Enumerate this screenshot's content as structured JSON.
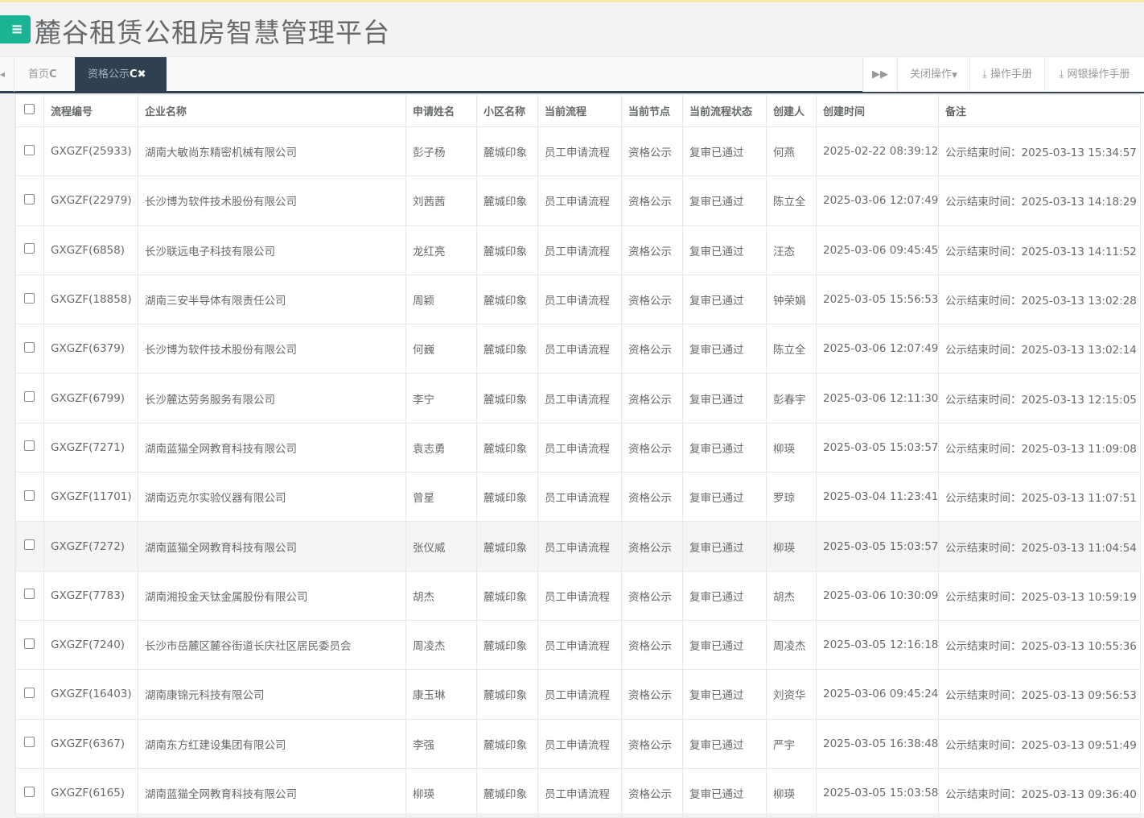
{
  "app": {
    "title": "麓谷租赁公租房智慧管理平台",
    "menu_icon": "hamburger-icon"
  },
  "tabs": [
    {
      "label": "首页",
      "active": false
    },
    {
      "label": "资格公示",
      "active": true
    }
  ],
  "toolbar": {
    "forward_icon": "double-chevron-right-icon",
    "close_ops": "关闭操作",
    "manual": "操作手册",
    "bank_manual": "网银操作手册"
  },
  "colors": {
    "accent": "#1ab394",
    "nav_dark": "#2f4050"
  },
  "table": {
    "columns": [
      "流程编号",
      "企业名称",
      "申请姓名",
      "小区名称",
      "当前流程",
      "当前节点",
      "当前流程状态",
      "创建人",
      "创建时间",
      "备注"
    ],
    "rows": [
      [
        "GXGZF(25933)",
        "湖南大敏尚东精密机械有限公司",
        "彭子杨",
        "麓城印象",
        "员工申请流程",
        "资格公示",
        "复审已通过",
        "何燕",
        "2025-02-22 08:39:12",
        "公示结束时间：2025-03-13 15:34:57"
      ],
      [
        "GXGZF(22979)",
        "长沙博为软件技术股份有限公司",
        "刘茜茜",
        "麓城印象",
        "员工申请流程",
        "资格公示",
        "复审已通过",
        "陈立全",
        "2025-03-06 12:07:49",
        "公示结束时间：2025-03-13 14:18:29"
      ],
      [
        "GXGZF(6858)",
        "长沙联远电子科技有限公司",
        "龙红亮",
        "麓城印象",
        "员工申请流程",
        "资格公示",
        "复审已通过",
        "汪态",
        "2025-03-06 09:45:45",
        "公示结束时间：2025-03-13 14:11:52"
      ],
      [
        "GXGZF(18858)",
        "湖南三安半导体有限责任公司",
        "周颖",
        "麓城印象",
        "员工申请流程",
        "资格公示",
        "复审已通过",
        "钟荣娟",
        "2025-03-05 15:56:53",
        "公示结束时间：2025-03-13 13:02:28"
      ],
      [
        "GXGZF(6379)",
        "长沙博为软件技术股份有限公司",
        "何巍",
        "麓城印象",
        "员工申请流程",
        "资格公示",
        "复审已通过",
        "陈立全",
        "2025-03-06 12:07:49",
        "公示结束时间：2025-03-13 13:02:14"
      ],
      [
        "GXGZF(6799)",
        "长沙麓达劳务服务有限公司",
        "李宁",
        "麓城印象",
        "员工申请流程",
        "资格公示",
        "复审已通过",
        "彭春宇",
        "2025-03-06 12:11:30",
        "公示结束时间：2025-03-13 12:15:05"
      ],
      [
        "GXGZF(7271)",
        "湖南蓝猫全网教育科技有限公司",
        "袁志勇",
        "麓城印象",
        "员工申请流程",
        "资格公示",
        "复审已通过",
        "柳瑛",
        "2025-03-05 15:03:57",
        "公示结束时间：2025-03-13 11:09:08"
      ],
      [
        "GXGZF(11701)",
        "湖南迈克尔实验仪器有限公司",
        "曾星",
        "麓城印象",
        "员工申请流程",
        "资格公示",
        "复审已通过",
        "罗琼",
        "2025-03-04 11:23:41",
        "公示结束时间：2025-03-13 11:07:51"
      ],
      [
        "GXGZF(7272)",
        "湖南蓝猫全网教育科技有限公司",
        "张仪威",
        "麓城印象",
        "员工申请流程",
        "资格公示",
        "复审已通过",
        "柳瑛",
        "2025-03-05 15:03:57",
        "公示结束时间：2025-03-13 11:04:54"
      ],
      [
        "GXGZF(7783)",
        "湖南湘投金天钛金属股份有限公司",
        "胡杰",
        "麓城印象",
        "员工申请流程",
        "资格公示",
        "复审已通过",
        "胡杰",
        "2025-03-06 10:30:09",
        "公示结束时间：2025-03-13 10:59:19"
      ],
      [
        "GXGZF(7240)",
        "长沙市岳麓区麓谷街道长庆社区居民委员会",
        "周凌杰",
        "麓城印象",
        "员工申请流程",
        "资格公示",
        "复审已通过",
        "周凌杰",
        "2025-03-05 12:16:18",
        "公示结束时间：2025-03-13 10:55:36"
      ],
      [
        "GXGZF(16403)",
        "湖南康锦元科技有限公司",
        "康玉琳",
        "麓城印象",
        "员工申请流程",
        "资格公示",
        "复审已通过",
        "刘资华",
        "2025-03-06 09:45:24",
        "公示结束时间：2025-03-13 09:56:53"
      ],
      [
        "GXGZF(6367)",
        "湖南东方红建设集团有限公司",
        "李强",
        "麓城印象",
        "员工申请流程",
        "资格公示",
        "复审已通过",
        "严宇",
        "2025-03-05 16:38:48",
        "公示结束时间：2025-03-13 09:51:49"
      ],
      [
        "GXGZF(6165)",
        "湖南蓝猫全网教育科技有限公司",
        "柳瑛",
        "麓城印象",
        "员工申请流程",
        "资格公示",
        "复审已通过",
        "柳瑛",
        "2025-03-05 15:03:58",
        "公示结束时间：2025-03-13 09:36:40"
      ]
    ]
  }
}
